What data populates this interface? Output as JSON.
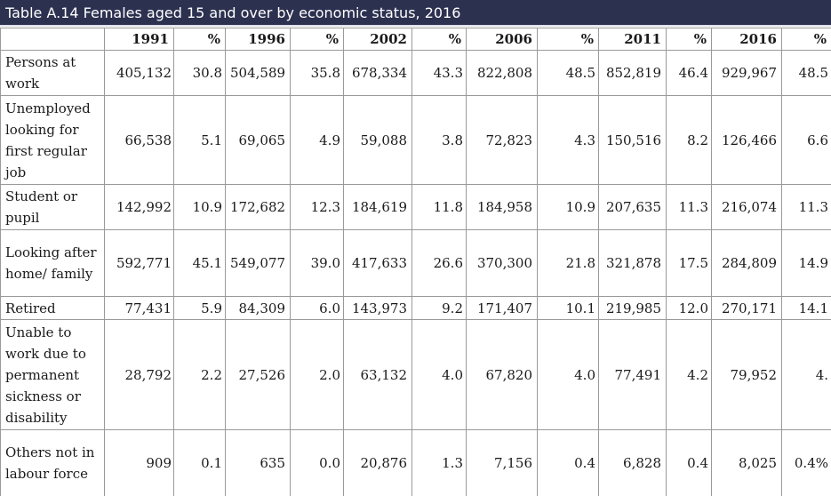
{
  "title": "Table A.14 Females aged 15 and over by economic status, 2016",
  "columns": [
    "",
    "1991",
    "%",
    "1996",
    "%",
    "2002",
    "%",
    "2006",
    "%",
    "2011",
    "%",
    "2016",
    "%"
  ],
  "rows": [
    {
      "label": "Persons at work",
      "values": [
        "405,132",
        "30.8",
        "504,589",
        "35.8",
        "678,334",
        "43.3",
        "822,808",
        "48.5",
        "852,819",
        "46.4",
        "929,967",
        "48.5"
      ]
    },
    {
      "label": "Unemployed looking for first regular job",
      "values": [
        "66,538",
        "5.1",
        "69,065",
        "4.9",
        "59,088",
        "3.8",
        "72,823",
        "4.3",
        "150,516",
        "8.2",
        "126,466",
        "6.6"
      ]
    },
    {
      "label": "Student or pupil",
      "values": [
        "142,992",
        "10.9",
        "172,682",
        "12.3",
        "184,619",
        "11.8",
        "184,958",
        "10.9",
        "207,635",
        "11.3",
        "216,074",
        "11.3"
      ]
    },
    {
      "label": "Looking after home/ family",
      "values": [
        "592,771",
        "45.1",
        "549,077",
        "39.0",
        "417,633",
        "26.6",
        "370,300",
        "21.8",
        "321,878",
        "17.5",
        "284,809",
        "14.9"
      ]
    },
    {
      "label": "Retired",
      "values": [
        "77,431",
        "5.9",
        "84,309",
        "6.0",
        "143,973",
        "9.2",
        "171,407",
        "10.1",
        "219,985",
        "12.0",
        "270,171",
        "14.1"
      ]
    },
    {
      "label": "Unable to work due to permanent sickness or disability",
      "values": [
        "28,792",
        "2.2",
        "27,526",
        "2.0",
        "63,132",
        "4.0",
        "67,820",
        "4.0",
        "77,491",
        "4.2",
        "79,952",
        "4."
      ]
    },
    {
      "label": "Others not in labour force",
      "values": [
        "909",
        "0.1",
        "635",
        "0.0",
        "20,876",
        "1.3",
        "7,156",
        "0.4",
        "6,828",
        "0.4",
        "8,025",
        "0.4%"
      ]
    }
  ]
}
